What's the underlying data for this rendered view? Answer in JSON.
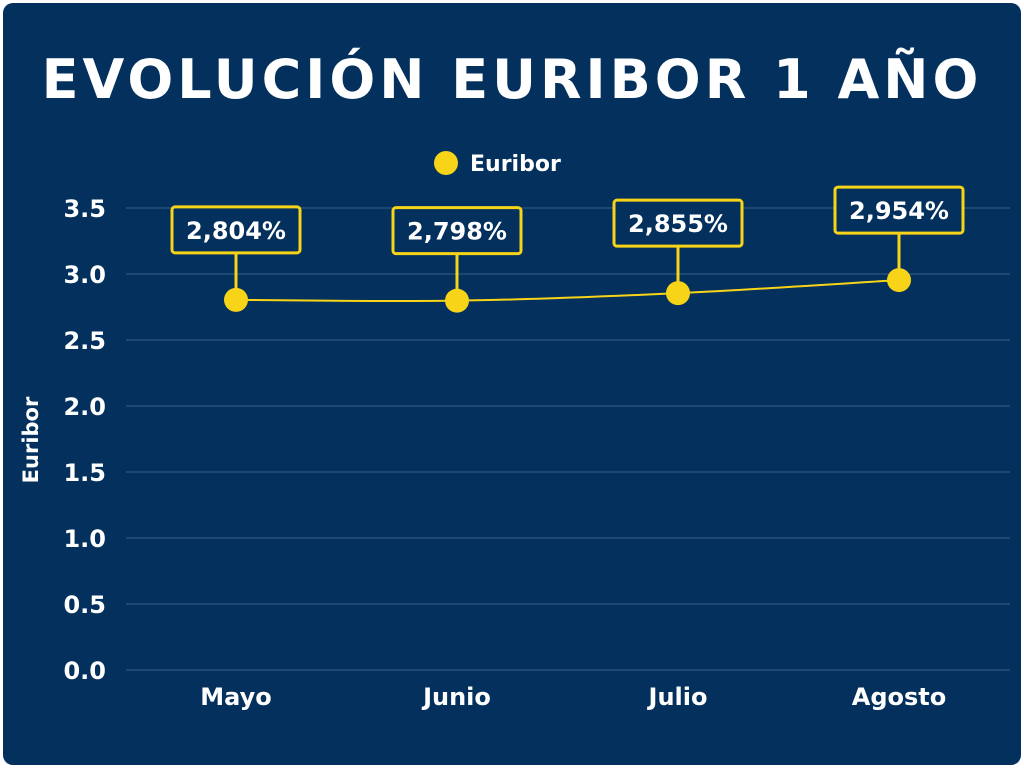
{
  "title": "EVOLUCIÓN EURIBOR 1 AÑO",
  "colors": {
    "background": "#03305c",
    "accent": "#f7d417",
    "text": "#ffffff",
    "grid": "#3a5f86"
  },
  "chart_data": {
    "type": "line",
    "title": "EVOLUCIÓN EURIBOR 1 AÑO",
    "xlabel": "",
    "ylabel": "Euribor",
    "categories": [
      "Mayo",
      "Junio",
      "Julio",
      "Agosto"
    ],
    "series": [
      {
        "name": "Euribor",
        "values": [
          2.804,
          2.798,
          2.855,
          2.954
        ],
        "labels": [
          "2,804%",
          "2,798%",
          "2,855%",
          "2,954%"
        ]
      }
    ],
    "yticks": [
      "0.0",
      "0.5",
      "1.0",
      "1.5",
      "2.0",
      "2.5",
      "3.0",
      "3.5"
    ],
    "ylim": [
      0,
      3.5
    ],
    "grid": true,
    "legend": "top-center"
  }
}
